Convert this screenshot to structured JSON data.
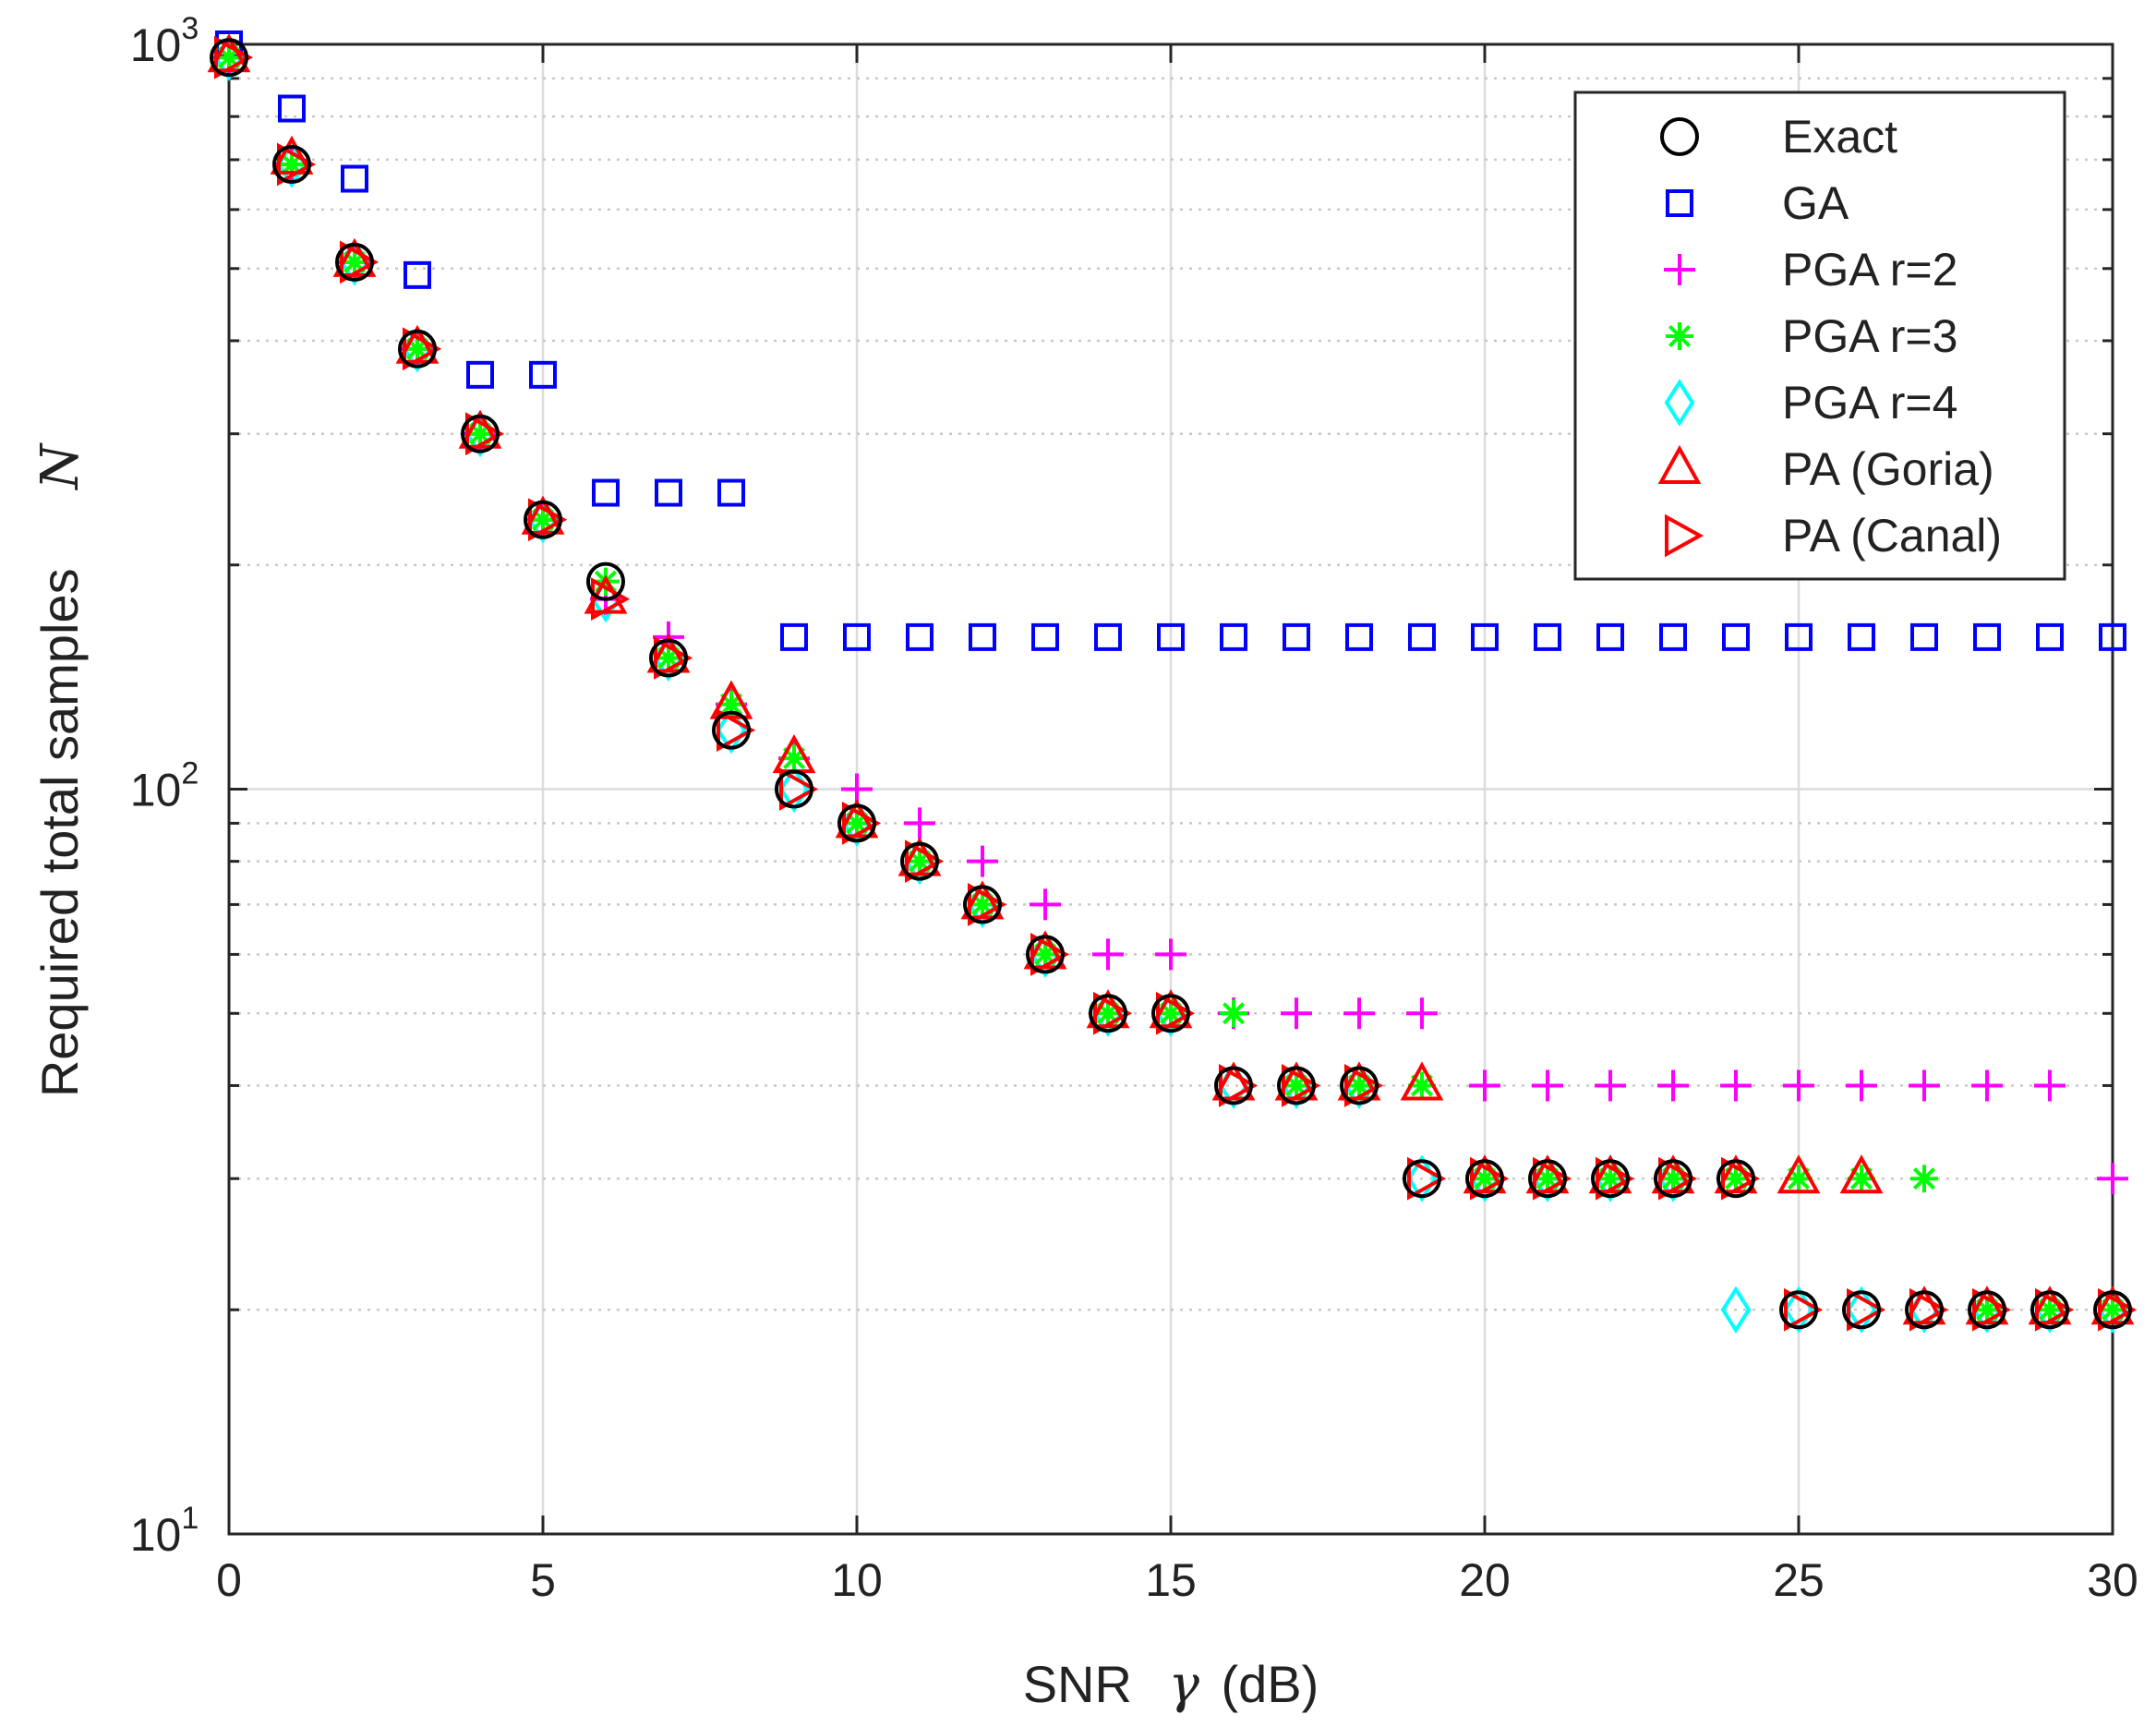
{
  "chart_data": {
    "type": "scatter",
    "title": "",
    "xlabel": "SNR",
    "xlabel_symbol": "γ",
    "xlabel_unit": "(dB)",
    "ylabel": "Required total samples",
    "ylabel_symbol": "N",
    "yscale": "log",
    "xlim": [
      0,
      30
    ],
    "ylim": [
      10,
      1000
    ],
    "grid": true,
    "legend_position": "top-right",
    "x_ticks": [
      0,
      5,
      10,
      15,
      20,
      25,
      30
    ],
    "x_tick_labels": [
      "0",
      "5",
      "10",
      "15",
      "20",
      "25",
      "30"
    ],
    "y_ticks": [
      {
        "value": 10,
        "base": "10",
        "exp": "1"
      },
      {
        "value": 100,
        "base": "10",
        "exp": "2"
      },
      {
        "value": 1000,
        "base": "10",
        "exp": "3"
      }
    ],
    "x": [
      0,
      1,
      2,
      3,
      4,
      5,
      6,
      7,
      8,
      9,
      10,
      11,
      12,
      13,
      14,
      15,
      16,
      17,
      18,
      19,
      20,
      21,
      22,
      23,
      24,
      25,
      26,
      27,
      28,
      29,
      30
    ],
    "series": [
      {
        "name": "Exact",
        "marker": "circle",
        "color": "#000000",
        "values": [
          960,
          690,
          510,
          390,
          300,
          230,
          190,
          150,
          120,
          100,
          90,
          80,
          70,
          60,
          50,
          50,
          40,
          40,
          40,
          30,
          30,
          30,
          30,
          30,
          30,
          20,
          20,
          20,
          20,
          20,
          20
        ]
      },
      {
        "name": "GA",
        "marker": "square",
        "color": "#0000ff",
        "values": [
          1000,
          820,
          660,
          490,
          360,
          360,
          250,
          250,
          250,
          160,
          160,
          160,
          160,
          160,
          160,
          160,
          160,
          160,
          160,
          160,
          160,
          160,
          160,
          160,
          160,
          160,
          160,
          160,
          160,
          160,
          160
        ]
      },
      {
        "name": "PGA r=2",
        "marker": "plus",
        "color": "#ff00ff",
        "values": [
          960,
          690,
          510,
          390,
          300,
          230,
          180,
          160,
          130,
          110,
          100,
          90,
          80,
          70,
          60,
          60,
          50,
          50,
          50,
          50,
          40,
          40,
          40,
          40,
          40,
          40,
          40,
          40,
          40,
          40,
          30
        ]
      },
      {
        "name": "PGA r=3",
        "marker": "asterisk",
        "color": "#00ff00",
        "values": [
          960,
          690,
          510,
          390,
          300,
          230,
          190,
          150,
          130,
          110,
          90,
          80,
          70,
          60,
          50,
          50,
          50,
          40,
          40,
          40,
          30,
          30,
          30,
          30,
          30,
          30,
          30,
          30,
          20,
          20,
          20
        ]
      },
      {
        "name": "PGA r=4",
        "marker": "diamond",
        "color": "#00ffff",
        "values": [
          960,
          690,
          510,
          390,
          300,
          230,
          180,
          150,
          120,
          100,
          90,
          80,
          70,
          60,
          50,
          50,
          40,
          40,
          40,
          30,
          30,
          30,
          30,
          30,
          20,
          20,
          20,
          20,
          20,
          20,
          20
        ]
      },
      {
        "name": "PA (Goria)",
        "marker": "triangle-up",
        "color": "#ff0000",
        "values": [
          960,
          700,
          510,
          390,
          300,
          230,
          180,
          150,
          130,
          110,
          90,
          80,
          70,
          60,
          50,
          50,
          40,
          40,
          40,
          40,
          30,
          30,
          30,
          30,
          30,
          30,
          30,
          20,
          20,
          20,
          20
        ]
      },
      {
        "name": "PA (Canal)",
        "marker": "triangle-right",
        "color": "#ff0000",
        "values": [
          960,
          690,
          510,
          390,
          300,
          230,
          180,
          150,
          120,
          100,
          90,
          80,
          70,
          60,
          50,
          50,
          40,
          40,
          40,
          30,
          30,
          30,
          30,
          30,
          30,
          20,
          20,
          20,
          20,
          20,
          20
        ]
      }
    ]
  }
}
